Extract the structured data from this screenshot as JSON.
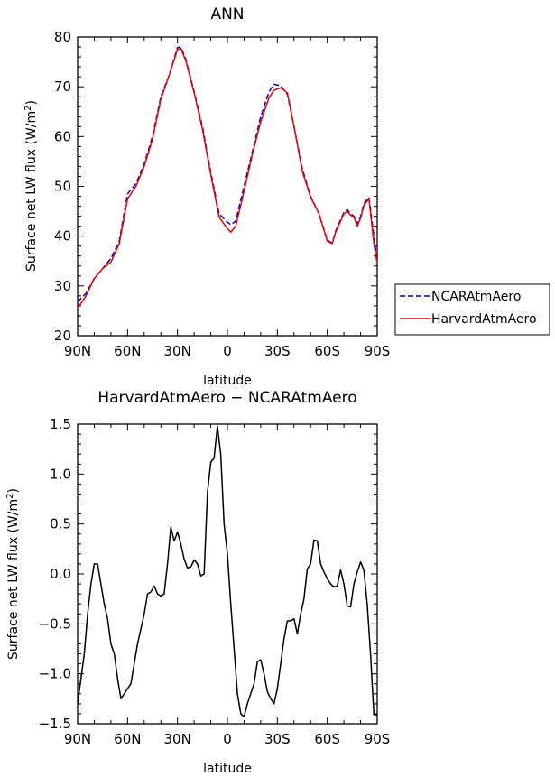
{
  "chart_data": [
    {
      "type": "line",
      "title": "ANN",
      "xlabel": "latitude",
      "ylabel_prefix": "Surface net LW flux (W/m",
      "ylabel_sup": "2",
      "ylabel_suffix": ")",
      "xlim": [
        90,
        -90
      ],
      "ylim": [
        20,
        80
      ],
      "xtick_values": [
        90,
        60,
        30,
        0,
        -30,
        -60,
        -90
      ],
      "xtick_labels": [
        "90N",
        "60N",
        "30N",
        "0",
        "30S",
        "60S",
        "90S"
      ],
      "ytick_values": [
        20,
        30,
        40,
        50,
        60,
        70,
        80
      ],
      "ytick_labels": [
        "20",
        "30",
        "40",
        "50",
        "60",
        "70",
        "80"
      ],
      "legend_position": "outside-right",
      "series": [
        {
          "name": "NCARAtmAero",
          "color": "#0000cc",
          "dash": "dashed",
          "x": [
            90,
            85,
            80,
            75,
            70,
            65,
            60,
            55,
            50,
            45,
            40,
            35,
            30,
            28,
            25,
            20,
            15,
            10,
            5,
            0,
            -2,
            -5,
            -10,
            -15,
            -20,
            -25,
            -28,
            -32,
            -36,
            -40,
            -45,
            -50,
            -55,
            -60,
            -63,
            -65,
            -70,
            -72,
            -74,
            -76,
            -78,
            -80,
            -82,
            -85,
            -88,
            -90
          ],
          "values": [
            26.8,
            28.5,
            31.5,
            33.5,
            35.5,
            39,
            48.5,
            50.5,
            54.5,
            60,
            68,
            72.3,
            77.9,
            78.0,
            75.5,
            69,
            62,
            52.8,
            44.5,
            42.8,
            42.3,
            43,
            50,
            57,
            64,
            69,
            70.5,
            70.2,
            68.5,
            62,
            53.5,
            48,
            44.5,
            39.2,
            38.6,
            41,
            44.8,
            45.3,
            44.5,
            44,
            42.5,
            44,
            46.5,
            47.8,
            40,
            35
          ]
        },
        {
          "name": "HarvardAtmAero",
          "color": "#ee0000",
          "dash": "solid",
          "x": [
            90,
            85,
            80,
            75,
            70,
            65,
            60,
            55,
            50,
            45,
            40,
            35,
            30,
            28,
            25,
            20,
            15,
            10,
            5,
            0,
            -2,
            -5,
            -10,
            -15,
            -20,
            -25,
            -28,
            -32,
            -36,
            -40,
            -45,
            -50,
            -55,
            -60,
            -63,
            -65,
            -70,
            -72,
            -74,
            -76,
            -78,
            -80,
            -82,
            -85,
            -88,
            -90
          ],
          "values": [
            25.5,
            28,
            31.5,
            33.5,
            34.8,
            38.5,
            47.5,
            50,
            54,
            59.5,
            67.5,
            72.3,
            77.5,
            77.7,
            75.2,
            68.8,
            61.5,
            52.3,
            43.8,
            41.5,
            40.8,
            42,
            49,
            56.5,
            63,
            67.8,
            69.3,
            69.8,
            68.8,
            62,
            53,
            47.8,
            44.5,
            39,
            38.5,
            40.8,
            44.5,
            45.0,
            44.2,
            43.8,
            42.0,
            43.6,
            46.2,
            47.5,
            38.5,
            34.5
          ]
        }
      ]
    },
    {
      "type": "line",
      "title": "HarvardAtmAero − NCARAtmAero",
      "xlabel": "latitude",
      "ylabel_prefix": "Surface net LW flux (W/m",
      "ylabel_sup": "2",
      "ylabel_suffix": ")",
      "xlim": [
        90,
        -90
      ],
      "ylim": [
        -1.5,
        1.5
      ],
      "xtick_values": [
        90,
        60,
        30,
        0,
        -30,
        -60,
        -90
      ],
      "xtick_labels": [
        "90N",
        "60N",
        "30N",
        "0",
        "30S",
        "60S",
        "90S"
      ],
      "ytick_values": [
        -1.5,
        -1.0,
        -0.5,
        0.0,
        0.5,
        1.0,
        1.5
      ],
      "ytick_labels": [
        "−1.5",
        "−1.0",
        "−0.5",
        "0.0",
        "0.5",
        "1.0",
        "1.5"
      ],
      "series": [
        {
          "color": "#000000",
          "dash": "solid",
          "x": [
            90,
            88,
            86,
            84,
            82,
            80,
            78,
            76,
            74,
            72,
            70,
            68,
            66,
            64,
            62,
            60,
            58,
            56,
            54,
            52,
            50,
            48,
            46,
            44,
            42,
            40,
            38,
            36,
            34,
            32,
            30,
            28,
            26,
            24,
            22,
            20,
            18,
            16,
            14,
            12,
            10,
            8,
            6,
            4,
            2,
            0,
            -2,
            -4,
            -6,
            -8,
            -10,
            -12,
            -14,
            -16,
            -18,
            -20,
            -22,
            -24,
            -26,
            -28,
            -30,
            -32,
            -34,
            -36,
            -38,
            -40,
            -42,
            -44,
            -46,
            -48,
            -50,
            -52,
            -54,
            -56,
            -58,
            -60,
            -62,
            -64,
            -66,
            -68,
            -70,
            -72,
            -74,
            -76,
            -78,
            -80,
            -82,
            -84,
            -86,
            -88,
            -90
          ],
          "values": [
            -1.3,
            -1.05,
            -0.8,
            -0.4,
            -0.1,
            0.1,
            0.1,
            -0.1,
            -0.3,
            -0.45,
            -0.7,
            -0.8,
            -1.05,
            -1.25,
            -1.2,
            -1.15,
            -1.1,
            -0.9,
            -0.7,
            -0.55,
            -0.4,
            -0.2,
            -0.18,
            -0.12,
            -0.2,
            -0.22,
            -0.2,
            0.1,
            0.47,
            0.33,
            0.42,
            0.3,
            0.15,
            0.06,
            0.07,
            0.14,
            0.1,
            -0.02,
            0.0,
            0.82,
            1.12,
            1.16,
            1.48,
            1.2,
            0.5,
            0.2,
            -0.3,
            -0.75,
            -1.2,
            -1.4,
            -1.43,
            -1.3,
            -1.2,
            -1.1,
            -0.88,
            -0.86,
            -1.0,
            -1.18,
            -1.25,
            -1.3,
            -1.15,
            -0.9,
            -0.65,
            -0.47,
            -0.47,
            -0.45,
            -0.6,
            -0.4,
            -0.25,
            0.05,
            0.1,
            0.34,
            0.33,
            0.1,
            0.02,
            -0.05,
            -0.1,
            -0.13,
            -0.12,
            0.04,
            -0.1,
            -0.32,
            -0.33,
            -0.1,
            0.02,
            0.12,
            0.04,
            -0.3,
            -0.8,
            -1.41,
            -1.41
          ]
        }
      ]
    }
  ]
}
